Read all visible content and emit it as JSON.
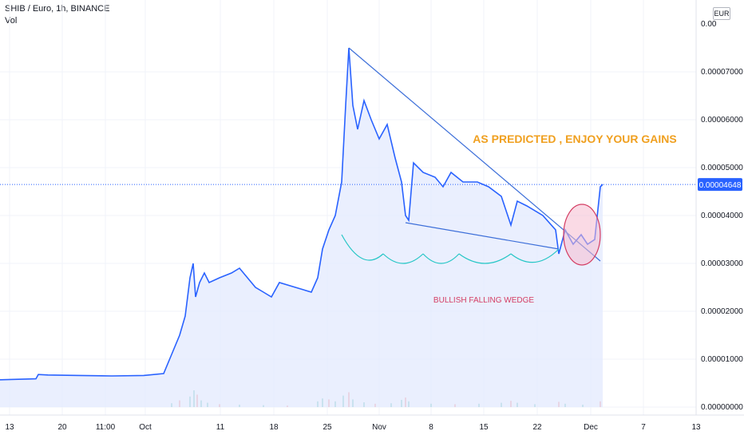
{
  "header": {
    "symbol_line": "SHIB / Euro, 1h, BINANCE",
    "volume_label": "Vol",
    "currency_badge": "EUR"
  },
  "chart_data": {
    "type": "line",
    "y_ticks": [
      "0.00007000",
      "0.00006000",
      "0.00005000",
      "0.00004000",
      "0.00003000",
      "0.00002000",
      "0.00001000",
      "0.00000000"
    ],
    "y_tick_partial": "0.00",
    "x_ticks": [
      "13",
      "20",
      "11:00",
      "Oct",
      "11",
      "18",
      "25",
      "Nov",
      "8",
      "15",
      "22",
      "Dec",
      "7",
      "13"
    ],
    "last_price": "0.00004648",
    "annotations": {
      "headline": "AS PREDICTED , ENJOY YOUR GAINS",
      "pattern_label": "BULLISH FALLING WEDGE"
    },
    "series": [
      {
        "values": [
          [
            0,
            5.7e-06
          ],
          [
            45,
            5.9e-06
          ],
          [
            48,
            6.8e-06
          ],
          [
            60,
            6.7e-06
          ],
          [
            100,
            6.6e-06
          ],
          [
            140,
            6.5e-06
          ],
          [
            180,
            6.6e-06
          ],
          [
            205,
            7e-06
          ],
          [
            215,
            1.1e-05
          ],
          [
            225,
            1.5e-05
          ],
          [
            232,
            1.9e-05
          ],
          [
            238,
            2.7e-05
          ],
          [
            242,
            3e-05
          ],
          [
            245,
            2.3e-05
          ],
          [
            250,
            2.6e-05
          ],
          [
            256,
            2.8e-05
          ],
          [
            262,
            2.6e-05
          ],
          [
            275,
            2.7e-05
          ],
          [
            290,
            2.8e-05
          ],
          [
            300,
            2.9e-05
          ],
          [
            310,
            2.7e-05
          ],
          [
            320,
            2.5e-05
          ],
          [
            330,
            2.4e-05
          ],
          [
            340,
            2.3e-05
          ],
          [
            350,
            2.6e-05
          ],
          [
            370,
            2.5e-05
          ],
          [
            390,
            2.4e-05
          ],
          [
            398,
            2.7e-05
          ],
          [
            404,
            3.3e-05
          ],
          [
            412,
            3.7e-05
          ],
          [
            420,
            4e-05
          ],
          [
            428,
            4.7e-05
          ],
          [
            433,
            6.3e-05
          ],
          [
            437,
            7.5e-05
          ],
          [
            442,
            6.3e-05
          ],
          [
            448,
            5.8e-05
          ],
          [
            456,
            6.4e-05
          ],
          [
            465,
            6e-05
          ],
          [
            475,
            5.6e-05
          ],
          [
            485,
            5.9e-05
          ],
          [
            495,
            5.2e-05
          ],
          [
            503,
            4.7e-05
          ],
          [
            508,
            4e-05
          ],
          [
            512,
            3.9e-05
          ],
          [
            518,
            5.1e-05
          ],
          [
            530,
            4.9e-05
          ],
          [
            545,
            4.8e-05
          ],
          [
            555,
            4.6e-05
          ],
          [
            565,
            4.9e-05
          ],
          [
            580,
            4.7e-05
          ],
          [
            598,
            4.7e-05
          ],
          [
            612,
            4.6e-05
          ],
          [
            628,
            4.4e-05
          ],
          [
            640,
            3.8e-05
          ],
          [
            648,
            4.3e-05
          ],
          [
            660,
            4.2e-05
          ],
          [
            680,
            4e-05
          ],
          [
            696,
            3.7e-05
          ],
          [
            700,
            3.2e-05
          ],
          [
            708,
            3.7e-05
          ],
          [
            718,
            3.4e-05
          ],
          [
            728,
            3.6e-05
          ],
          [
            736,
            3.4e-05
          ],
          [
            745,
            3.5e-05
          ],
          [
            752,
            4.6e-05
          ],
          [
            755,
            4.65e-05
          ]
        ]
      },
      {
        "name": "Vol",
        "values": [
          [
            215,
            8e-07
          ],
          [
            225,
            1.4e-06
          ],
          [
            238,
            2.2e-06
          ],
          [
            243,
            3.5e-06
          ],
          [
            247,
            2.6e-06
          ],
          [
            252,
            1.4e-06
          ],
          [
            260,
            9e-07
          ],
          [
            275,
            6e-07
          ],
          [
            300,
            5e-07
          ],
          [
            330,
            4e-07
          ],
          [
            360,
            3e-07
          ],
          [
            398,
            1.2e-06
          ],
          [
            404,
            1.8e-06
          ],
          [
            412,
            1.6e-06
          ],
          [
            420,
            1.2e-06
          ],
          [
            430,
            2.4e-06
          ],
          [
            437,
            3.1e-06
          ],
          [
            442,
            1.6e-06
          ],
          [
            456,
            1e-06
          ],
          [
            470,
            7e-07
          ],
          [
            490,
            8e-07
          ],
          [
            503,
            1.5e-06
          ],
          [
            508,
            2e-06
          ],
          [
            512,
            1.2e-06
          ],
          [
            540,
            7e-07
          ],
          [
            570,
            6e-07
          ],
          [
            600,
            7e-07
          ],
          [
            628,
            9e-07
          ],
          [
            640,
            1.3e-06
          ],
          [
            648,
            9e-07
          ],
          [
            670,
            6e-07
          ],
          [
            700,
            1.1e-06
          ],
          [
            708,
            7e-07
          ],
          [
            730,
            5e-07
          ],
          [
            752,
            1.2e-06
          ]
        ]
      }
    ],
    "drawings": {
      "wedge_upper": [
        [
          437,
          7.5e-05
        ],
        [
          752,
          3.05e-05
        ]
      ],
      "wedge_lower": [
        [
          508,
          3.85e-05
        ],
        [
          700,
          3.3e-05
        ]
      ],
      "arcs": [
        [
          428,
          3.6e-05
        ],
        [
          480,
          3.2e-05
        ],
        [
          530,
          3.2e-05
        ],
        [
          575,
          3.2e-05
        ],
        [
          640,
          3.2e-05
        ],
        [
          700,
          3.3e-05
        ]
      ],
      "circle": [
        729,
        3.6e-05
      ],
      "last_price_line": 4.648e-05
    },
    "colors": {
      "price_line": "#2962ff",
      "area_top": "#e3eafd",
      "drawing": "#3d6fd9",
      "arc": "#26c6c6",
      "circle_fill": "#f6bcd0",
      "circle_stroke": "#d43d63",
      "headline": "#f0a020",
      "pattern_label": "#d43d63",
      "vol_up": "#26a69a",
      "vol_down": "#ef5350"
    },
    "grid": true
  }
}
